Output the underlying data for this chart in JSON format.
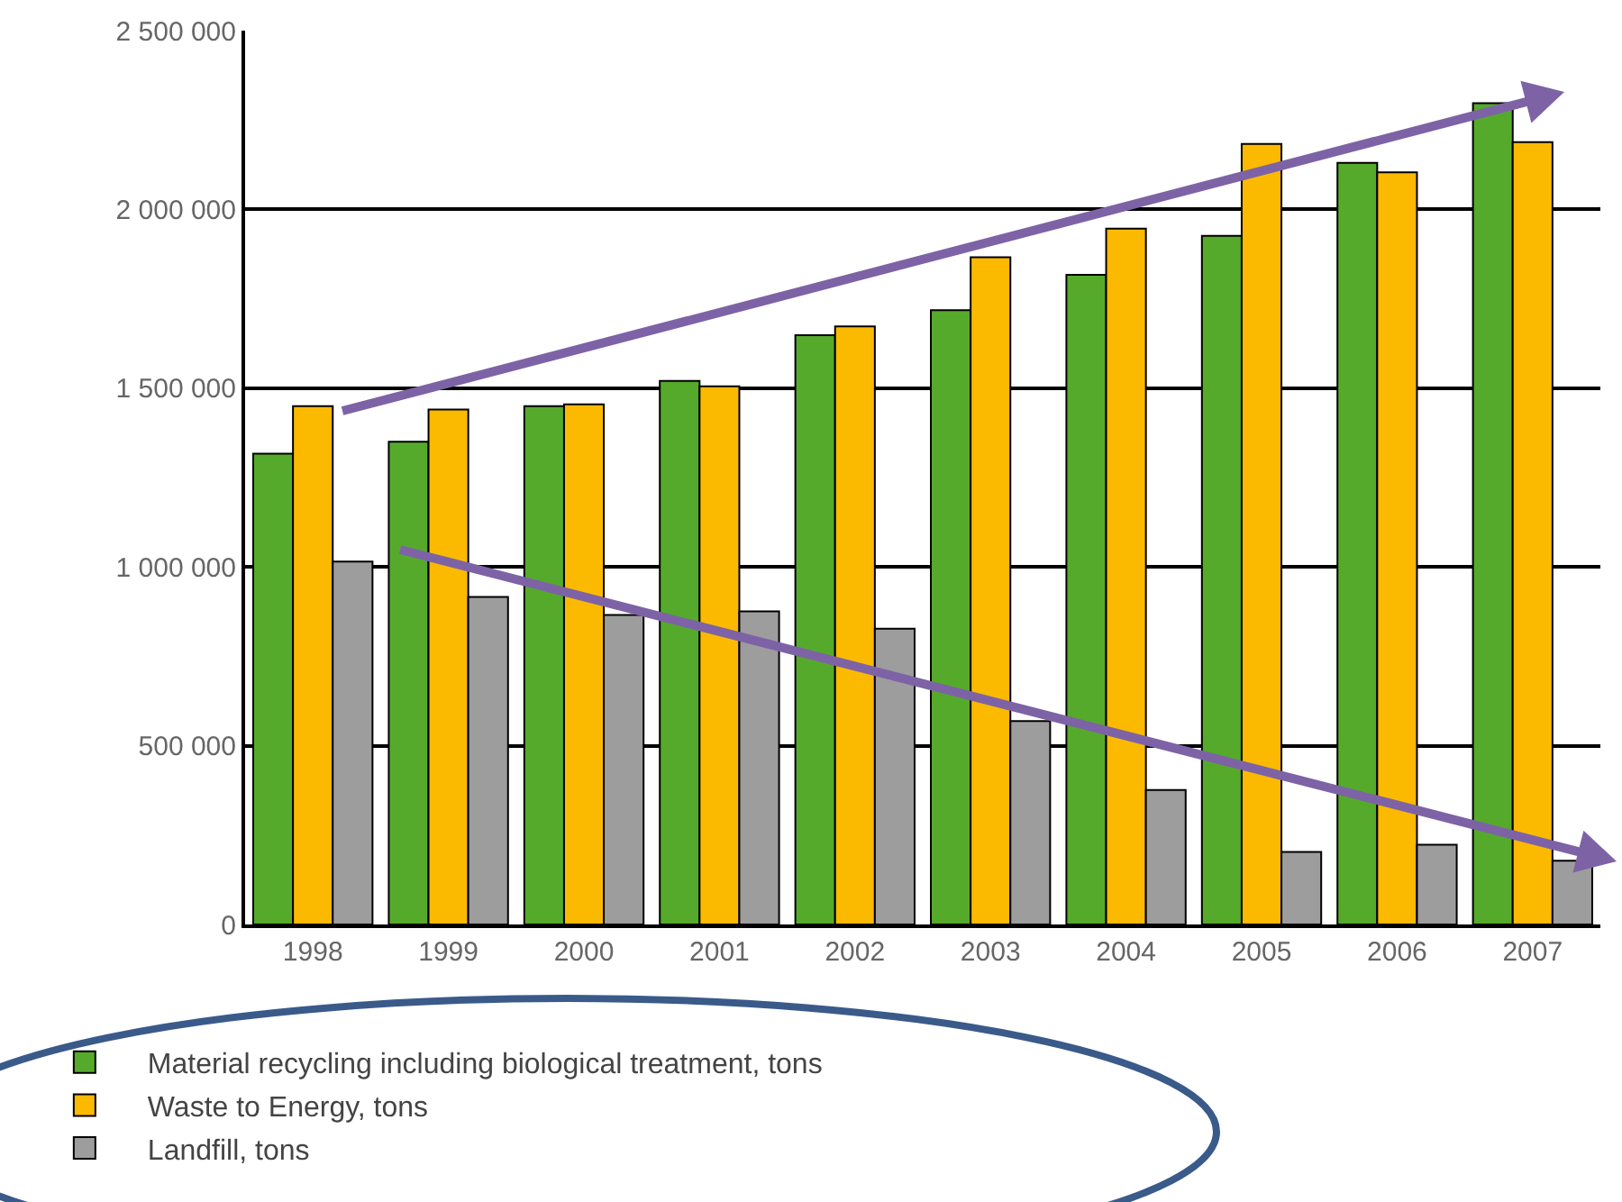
{
  "chart_data": {
    "type": "bar",
    "categories": [
      "1998",
      "1999",
      "2000",
      "2001",
      "2002",
      "2003",
      "2004",
      "2005",
      "2006",
      "2007"
    ],
    "series": [
      {
        "name": "Material recycling including biological treatment, tons",
        "color": "#56aa2b",
        "values": [
          1317000,
          1350000,
          1450000,
          1520000,
          1648000,
          1718000,
          1817000,
          1926000,
          2130000,
          2297000
        ]
      },
      {
        "name": "Waste to Energy, tons",
        "color": "#fbb900",
        "values": [
          1450000,
          1440000,
          1455000,
          1505000,
          1673000,
          1866000,
          1946000,
          2183000,
          2104000,
          2188000
        ]
      },
      {
        "name": "Landfill, tons",
        "color": "#9d9d9d",
        "values": [
          1015000,
          916000,
          866000,
          876000,
          827000,
          569000,
          376000,
          203000,
          223000,
          178000
        ]
      }
    ],
    "ylim": [
      0,
      2500000
    ],
    "yticks": [
      0,
      {
        "value": 500000,
        "label": "500 000"
      },
      {
        "value": 1000000,
        "label": "1 000 000"
      },
      {
        "value": 1500000,
        "label": "1 500 000"
      },
      {
        "value": 2000000,
        "label": "2 000 000"
      },
      {
        "value": 2500000,
        "label": "2 500 000"
      }
    ],
    "grid": "y",
    "legend": "bottom left"
  }
}
